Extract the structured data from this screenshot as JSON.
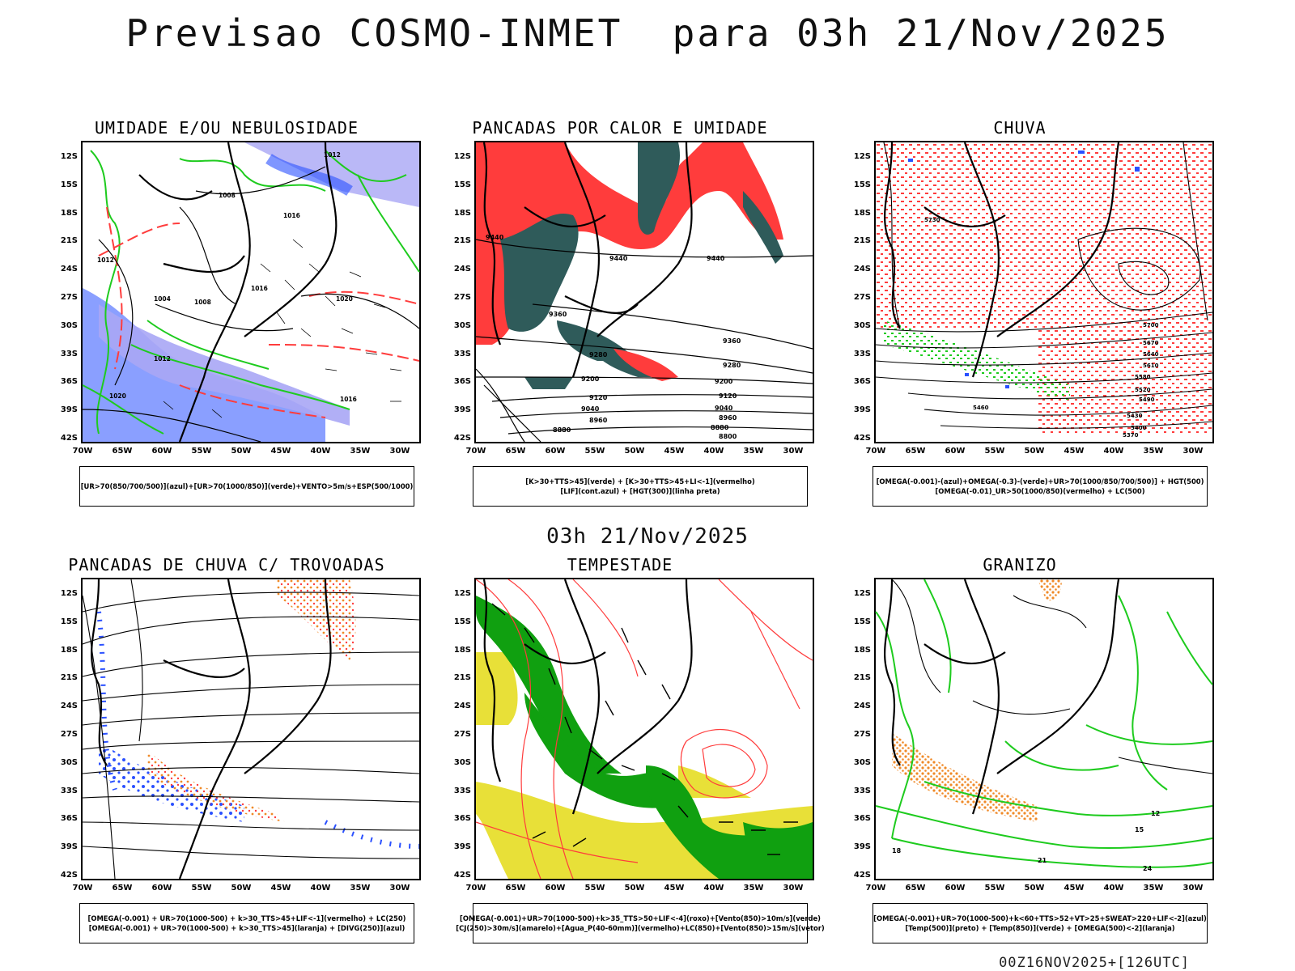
{
  "title": "Previsao COSMO-INMET  para 03h 21/Nov/2025",
  "mid_label": "03h 21/Nov/2025",
  "run_label": "00Z16NOV2025+[126UTC]",
  "lat_labels": [
    "12S",
    "15S",
    "18S",
    "21S",
    "24S",
    "27S",
    "30S",
    "33S",
    "36S",
    "39S",
    "42S"
  ],
  "lon_labels": [
    "70W",
    "65W",
    "60W",
    "55W",
    "50W",
    "45W",
    "40W",
    "35W",
    "30W"
  ],
  "panels": [
    {
      "title": "UMIDADE E/OU NEBULOSIDADE",
      "legend": [
        "[UR>70(850/700/500)](azul)+[UR>70(1000/850)](verde)+VENTO>5m/s+ESP(500/1000)"
      ]
    },
    {
      "title": "PANCADAS POR CALOR E UMIDADE",
      "legend": [
        "[K>30+TTS>45](verde) + [K>30+TTS>45+LI<-1](vermelho)",
        "[LIF](cont.azul) + [HGT(300)](linha preta)"
      ]
    },
    {
      "title": "CHUVA",
      "legend": [
        "[OMEGA(-0.001)-(azul)+OMEGA(-0.3)-(verde)+UR>70(1000/850/700/500)] + HGT(500)",
        "[OMEGA(-0.01)_UR>50(1000/850)(vermelho) + LC(500)"
      ]
    },
    {
      "title": "PANCADAS DE CHUVA C/ TROVOADAS",
      "legend": [
        "[OMEGA(-0.001) + UR>70(1000-500) + k>30_TTS>45+LIF<-1](vermelho) + LC(250)",
        "[OMEGA(-0.001) + UR>70(1000-500) + k>30_TTS>45](laranja) + [DIVG(250)](azul)"
      ]
    },
    {
      "title": "TEMPESTADE",
      "legend": [
        "[OMEGA(-0.001)+UR>70(1000-500)+k>35_TTS>50+LIF<-4](roxo)+[Vento(850)>10m/s](verde)",
        "[CJ(250)>30m/s](amarelo)+[Agua_P(40-60mm)](vermelho)+LC(850)+[Vento(850)>15m/s](vetor)"
      ]
    },
    {
      "title": "GRANIZO",
      "legend": [
        "[OMEGA(-0.001)+UR>70(1000-500)+k<60+TTS>52+VT>25+SWEAT>220+LIF<-2](azul)",
        "[Temp(500)](preto) + [Temp(850)](verde) + [OMEGA(500)<-2](laranja)"
      ]
    }
  ],
  "contour_labels": {
    "p1": [
      "1012",
      "1008",
      "1016",
      "1012",
      "1016",
      "1020",
      "1004",
      "1008",
      "1012",
      "1016",
      "1020"
    ],
    "p2": [
      "9440",
      "9440",
      "9440",
      "9360",
      "9360",
      "9280",
      "9280",
      "9200",
      "9200",
      "9120",
      "9120",
      "9040",
      "9040",
      "8960",
      "8960",
      "8880",
      "8880",
      "8800"
    ],
    "p3": [
      "5730",
      "5700",
      "5670",
      "5640",
      "5610",
      "5580",
      "5520",
      "5490",
      "5460",
      "5430",
      "5400",
      "5370"
    ],
    "p6": [
      "12",
      "15",
      "18",
      "21",
      "24"
    ]
  },
  "colors": {
    "red": "#ff3c3c",
    "green": "#1ecb1e",
    "blue": "#2a50ff",
    "lightblue": "#a9a6f5",
    "orange": "#f08a28",
    "teal": "#2f5b5a",
    "yellow": "#e8e038",
    "darkgreen": "#10a010"
  }
}
